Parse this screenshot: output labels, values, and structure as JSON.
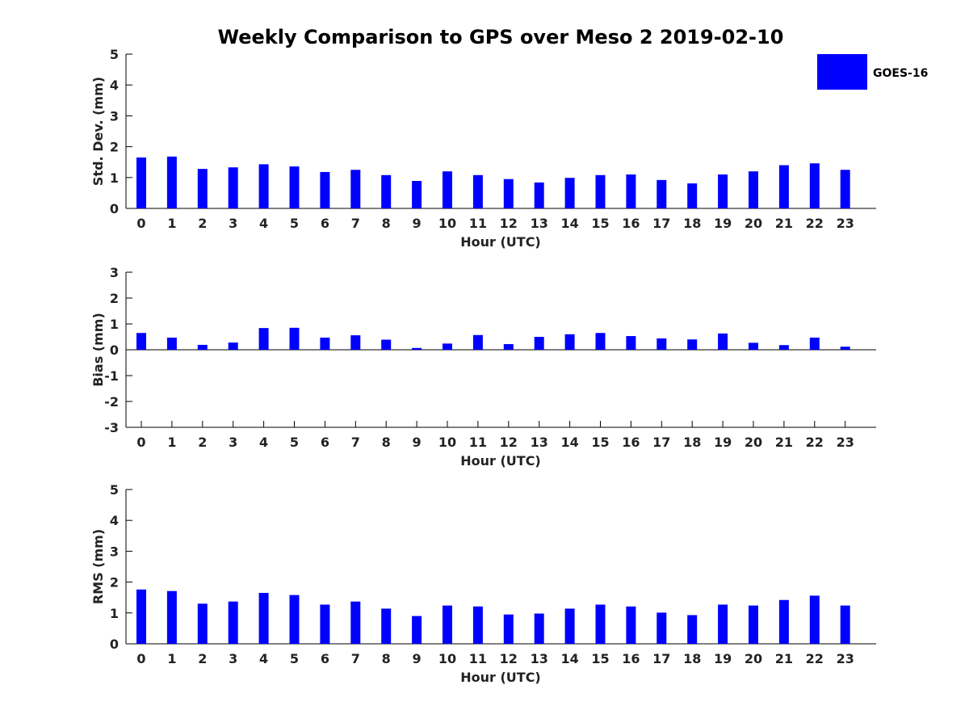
{
  "title": "Weekly Comparison to GPS over Meso 2 2019-02-10",
  "legend": {
    "label": "GOES-16",
    "color": "#0000ff"
  },
  "chart_data": [
    {
      "type": "bar",
      "name": "std-dev",
      "ylabel": "Std. Dev. (mm)",
      "xlabel": "Hour (UTC)",
      "ylim": [
        0,
        5
      ],
      "yticks": [
        0,
        1,
        2,
        3,
        4,
        5
      ],
      "categories": [
        "0",
        "1",
        "2",
        "3",
        "4",
        "5",
        "6",
        "7",
        "8",
        "9",
        "10",
        "11",
        "12",
        "13",
        "14",
        "15",
        "16",
        "17",
        "18",
        "19",
        "20",
        "21",
        "22",
        "23"
      ],
      "series": [
        {
          "name": "GOES-16",
          "values": [
            1.65,
            1.68,
            1.28,
            1.33,
            1.43,
            1.36,
            1.18,
            1.25,
            1.08,
            0.89,
            1.2,
            1.08,
            0.95,
            0.84,
            0.99,
            1.08,
            1.1,
            0.92,
            0.81,
            1.1,
            1.2,
            1.4,
            1.46,
            1.25
          ]
        }
      ]
    },
    {
      "type": "bar",
      "name": "bias",
      "ylabel": "Bias (mm)",
      "xlabel": "Hour (UTC)",
      "ylim": [
        -3,
        3
      ],
      "yticks": [
        -3,
        -2,
        -1,
        0,
        1,
        2,
        3
      ],
      "categories": [
        "0",
        "1",
        "2",
        "3",
        "4",
        "5",
        "6",
        "7",
        "8",
        "9",
        "10",
        "11",
        "12",
        "13",
        "14",
        "15",
        "16",
        "17",
        "18",
        "19",
        "20",
        "21",
        "22",
        "23"
      ],
      "series": [
        {
          "name": "GOES-16",
          "values": [
            0.65,
            0.47,
            0.19,
            0.28,
            0.84,
            0.85,
            0.47,
            0.56,
            0.39,
            0.07,
            0.24,
            0.57,
            0.22,
            0.5,
            0.6,
            0.65,
            0.53,
            0.44,
            0.4,
            0.63,
            0.27,
            0.18,
            0.47,
            0.12
          ]
        }
      ]
    },
    {
      "type": "bar",
      "name": "rms",
      "ylabel": "RMS (mm)",
      "xlabel": "Hour (UTC)",
      "ylim": [
        0,
        5
      ],
      "yticks": [
        0,
        1,
        2,
        3,
        4,
        5
      ],
      "categories": [
        "0",
        "1",
        "2",
        "3",
        "4",
        "5",
        "6",
        "7",
        "8",
        "9",
        "10",
        "11",
        "12",
        "13",
        "14",
        "15",
        "16",
        "17",
        "18",
        "19",
        "20",
        "21",
        "22",
        "23"
      ],
      "series": [
        {
          "name": "GOES-16",
          "values": [
            1.76,
            1.71,
            1.3,
            1.37,
            1.65,
            1.58,
            1.27,
            1.37,
            1.14,
            0.9,
            1.24,
            1.21,
            0.95,
            0.98,
            1.14,
            1.27,
            1.21,
            1.01,
            0.93,
            1.27,
            1.24,
            1.42,
            1.56,
            1.24
          ]
        }
      ]
    }
  ]
}
